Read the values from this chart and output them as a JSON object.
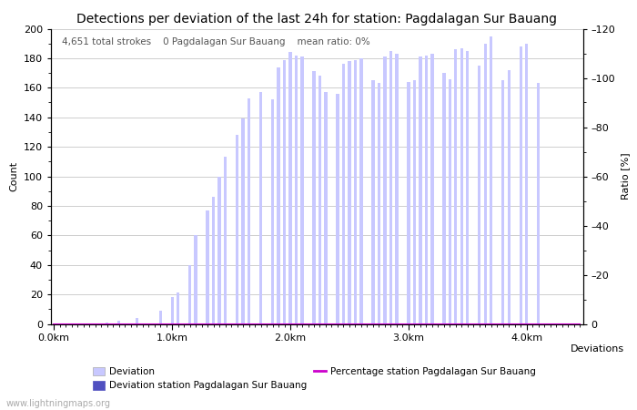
{
  "title": "Detections per deviation of the last 24h for station: Pagdalagan Sur Bauang",
  "subtitle_parts": [
    "4,651 total strokes",
    "0 Pagdalagan Sur Bauang",
    "mean ratio: 0%"
  ],
  "xlabel": "Deviations",
  "ylabel_left": "Count",
  "ylabel_right": "Ratio [%]",
  "ylim_left": [
    0,
    200
  ],
  "ylim_right": [
    0,
    120
  ],
  "yticks_left": [
    0,
    20,
    40,
    60,
    80,
    100,
    120,
    140,
    160,
    180,
    200
  ],
  "yticks_right": [
    0,
    20,
    40,
    60,
    80,
    100,
    120
  ],
  "xtick_labels": [
    "0.0km",
    "1.0km",
    "2.0km",
    "3.0km",
    "4.0km"
  ],
  "xtick_positions": [
    0,
    20,
    40,
    60,
    80
  ],
  "n_bars": 90,
  "bar_values": [
    0,
    0,
    0,
    0,
    0,
    0,
    0,
    0,
    0,
    1,
    0,
    2,
    0,
    0,
    4,
    0,
    0,
    0,
    9,
    0,
    18,
    21,
    0,
    40,
    60,
    0,
    77,
    86,
    100,
    113,
    0,
    128,
    139,
    153,
    0,
    157,
    0,
    152,
    174,
    179,
    184,
    182,
    181,
    0,
    171,
    168,
    157,
    0,
    156,
    176,
    178,
    179,
    180,
    0,
    165,
    163,
    181,
    185,
    183,
    0,
    164,
    165,
    181,
    182,
    183,
    0,
    170,
    166,
    186,
    187,
    185,
    0,
    175,
    190,
    195,
    0,
    165,
    172,
    0,
    188,
    190,
    0,
    163,
    0,
    0,
    0,
    0,
    0,
    0,
    0
  ],
  "station_bar_values": [
    0,
    0,
    0,
    0,
    0,
    0,
    0,
    0,
    0,
    0,
    0,
    0,
    0,
    0,
    0,
    0,
    0,
    0,
    0,
    0,
    0,
    0,
    0,
    0,
    0,
    0,
    0,
    0,
    0,
    0,
    0,
    0,
    0,
    0,
    0,
    0,
    0,
    0,
    0,
    0,
    0,
    0,
    0,
    0,
    0,
    0,
    0,
    0,
    0,
    0,
    0,
    0,
    0,
    0,
    0,
    0,
    0,
    0,
    0,
    0,
    0,
    0,
    0,
    0,
    0,
    0,
    0,
    0,
    0,
    0,
    0,
    0,
    0,
    0,
    0,
    0,
    0,
    0,
    0,
    0,
    0,
    0,
    0,
    0,
    0,
    0,
    0,
    0,
    0,
    0
  ],
  "percentage_values": [
    0,
    0,
    0,
    0,
    0,
    0,
    0,
    0,
    0,
    0,
    0,
    0,
    0,
    0,
    0,
    0,
    0,
    0,
    0,
    0,
    0,
    0,
    0,
    0,
    0,
    0,
    0,
    0,
    0,
    0,
    0,
    0,
    0,
    0,
    0,
    0,
    0,
    0,
    0,
    0,
    0,
    0,
    0,
    0,
    0,
    0,
    0,
    0,
    0,
    0,
    0,
    0,
    0,
    0,
    0,
    0,
    0,
    0,
    0,
    0,
    0,
    0,
    0,
    0,
    0,
    0,
    0,
    0,
    0,
    0,
    0,
    0,
    0,
    0,
    0,
    0,
    0,
    0,
    0,
    0,
    0,
    0,
    0,
    0,
    0,
    0,
    0,
    0,
    0,
    0
  ],
  "bar_color_deviation": "#c8c8ff",
  "bar_color_station": "#5050c0",
  "line_color_percentage": "#cc00cc",
  "background_color": "#ffffff",
  "grid_color": "#bbbbbb",
  "title_fontsize": 10,
  "axis_fontsize": 8,
  "tick_fontsize": 8,
  "watermark": "www.lightningmaps.org"
}
